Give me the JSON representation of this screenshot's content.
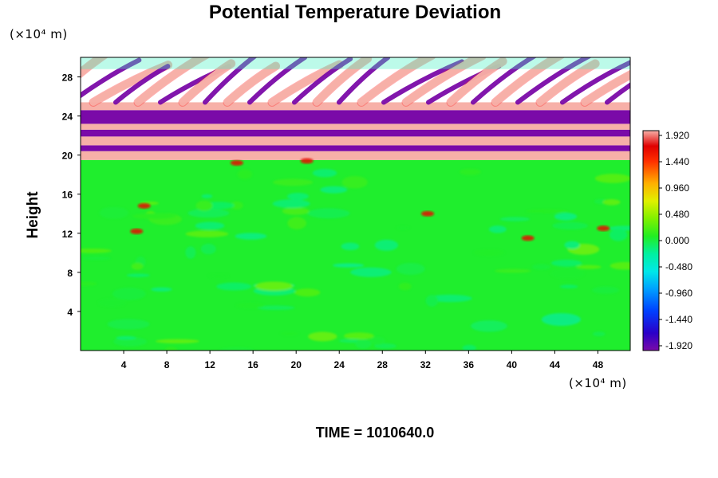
{
  "chart_data": {
    "type": "heatmap",
    "title": "Potential Temperature Deviation",
    "ylabel": "Height",
    "y_unit": "(×10⁴ m)",
    "x_unit": "(×10⁴ m)",
    "xlim": [
      0,
      51
    ],
    "ylim": [
      0,
      30
    ],
    "x_ticks": [
      4,
      8,
      12,
      16,
      20,
      24,
      28,
      32,
      36,
      40,
      44,
      48
    ],
    "y_ticks": [
      4,
      8,
      12,
      16,
      20,
      24,
      28
    ],
    "colorbar": {
      "range": [
        -1.92,
        1.92
      ],
      "tick_labels": [
        "1.920",
        "1.440",
        "0.960",
        "0.480",
        "0.000",
        "-0.480",
        "-0.960",
        "-1.440",
        "-1.920"
      ]
    },
    "field_bands": [
      {
        "y_from": 0,
        "y_to": 19.5,
        "value": 0.05,
        "description_level": "near-zero background"
      },
      {
        "y_from": 19.5,
        "y_to": 20.4,
        "value": 1.92
      },
      {
        "y_from": 20.4,
        "y_to": 21.0,
        "value": -1.92
      },
      {
        "y_from": 21.0,
        "y_to": 21.9,
        "value": 1.92
      },
      {
        "y_from": 21.9,
        "y_to": 22.6,
        "value": -1.92
      },
      {
        "y_from": 22.6,
        "y_to": 23.2,
        "value": 1.92
      },
      {
        "y_from": 23.2,
        "y_to": 24.6,
        "value": -1.92
      },
      {
        "y_from": 24.6,
        "y_to": 25.4,
        "value": 1.92
      }
    ],
    "time_label": "TIME = 1010640.0"
  },
  "colors": {
    "background_field": "#22ee22",
    "positive_max": "#f7b0a8",
    "negative_max": "#7a0aa8"
  }
}
